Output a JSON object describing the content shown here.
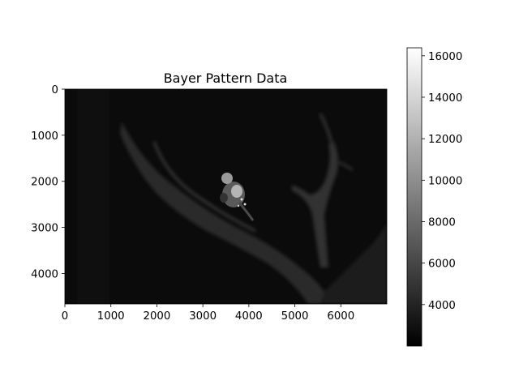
{
  "chart_data": {
    "type": "heatmap",
    "title": "Bayer Pattern Data",
    "xlabel": "",
    "ylabel": "",
    "xlim": [
      0,
      7000
    ],
    "ylim": [
      4660,
      0
    ],
    "x_ticks": [
      0,
      1000,
      2000,
      3000,
      4000,
      5000,
      6000
    ],
    "y_ticks": [
      0,
      1000,
      2000,
      3000,
      4000
    ],
    "x_tick_labels": [
      "0",
      "1000",
      "2000",
      "3000",
      "4000",
      "5000",
      "6000"
    ],
    "y_tick_labels": [
      "0",
      "1000",
      "2000",
      "3000",
      "4000"
    ],
    "colormap": "gray",
    "colorbar": {
      "range": [
        2000,
        16383
      ],
      "ticks": [
        4000,
        6000,
        8000,
        10000,
        12000,
        14000,
        16000
      ],
      "tick_labels": [
        "4000",
        "6000",
        "8000",
        "10000",
        "12000",
        "14000",
        "16000"
      ]
    },
    "image_description": "Dark grayscale raw sensor image: a bird perched on a diagonal tree branch with a forked dead branch on the right, against a near-black background.",
    "grid": false,
    "legend": "none"
  }
}
